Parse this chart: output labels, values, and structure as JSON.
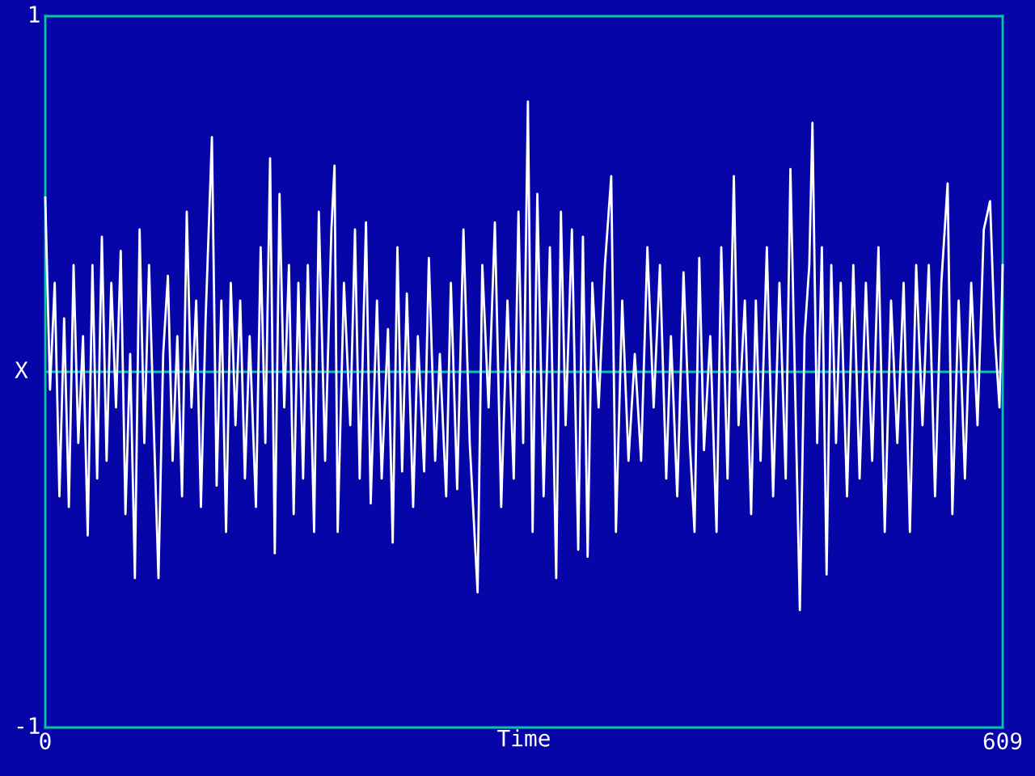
{
  "chart_data": {
    "type": "line",
    "xlabel": "Time",
    "ylabel": "X",
    "xlim": [
      0,
      609
    ],
    "xticks": [
      0,
      609
    ],
    "ylim": [
      -1,
      1
    ],
    "yticks": [
      1,
      {
        "value": -1,
        "label": "-1"
      }
    ],
    "grid": false,
    "marker": "none",
    "line_style": "solid",
    "ref_lines": [
      {
        "axis": "y",
        "value": 0,
        "label": null,
        "color": "#00c8a8",
        "line_style": "solid"
      }
    ],
    "series": [
      {
        "color": "#ffffff",
        "x": [
          0,
          3,
          6,
          9,
          12,
          15,
          18,
          21,
          24,
          27,
          30,
          33,
          36,
          39,
          42,
          45,
          48,
          51,
          54,
          57,
          60,
          63,
          66,
          69,
          72,
          75,
          78,
          81,
          84,
          87,
          90,
          93,
          96,
          99,
          102,
          106,
          109,
          112,
          115,
          118,
          121,
          124,
          127,
          130,
          134,
          137,
          140,
          143,
          146,
          149,
          152,
          155,
          158,
          161,
          164,
          167,
          171,
          174,
          178,
          182,
          184,
          186,
          190,
          194,
          197,
          200,
          204,
          207,
          211,
          214,
          218,
          221,
          224,
          227,
          230,
          234,
          237,
          241,
          244,
          248,
          251,
          255,
          258,
          262,
          266,
          270,
          275,
          278,
          282,
          286,
          290,
          294,
          298,
          301,
          304,
          307,
          310,
          313,
          317,
          321,
          325,
          328,
          331,
          335,
          339,
          342,
          345,
          348,
          352,
          356,
          360,
          363,
          367,
          371,
          375,
          379,
          383,
          387,
          391,
          395,
          398,
          402,
          406,
          410,
          413,
          416,
          419,
          423,
          427,
          430,
          434,
          438,
          441,
          445,
          449,
          452,
          455,
          459,
          463,
          467,
          471,
          474,
          477,
          480,
          483,
          486,
          488,
          491,
          494,
          497,
          500,
          503,
          506,
          510,
          514,
          518,
          522,
          526,
          530,
          534,
          538,
          542,
          546,
          550,
          554,
          558,
          562,
          566,
          570,
          574,
          577,
          581,
          585,
          589,
          593,
          597,
          601,
          604,
          607,
          609
        ],
        "values": [
          0.49,
          -0.05,
          0.25,
          -0.35,
          0.15,
          -0.38,
          0.3,
          -0.2,
          0.1,
          -0.46,
          0.3,
          -0.3,
          0.38,
          -0.25,
          0.25,
          -0.1,
          0.34,
          -0.4,
          0.05,
          -0.58,
          0.4,
          -0.2,
          0.3,
          -0.15,
          -0.58,
          0.05,
          0.27,
          -0.25,
          0.1,
          -0.35,
          0.45,
          -0.1,
          0.2,
          -0.38,
          0.15,
          0.66,
          -0.32,
          0.2,
          -0.45,
          0.25,
          -0.15,
          0.2,
          -0.3,
          0.1,
          -0.38,
          0.35,
          -0.2,
          0.6,
          -0.51,
          0.5,
          -0.1,
          0.3,
          -0.4,
          0.25,
          -0.3,
          0.3,
          -0.45,
          0.45,
          -0.25,
          0.4,
          0.58,
          -0.45,
          0.25,
          -0.15,
          0.4,
          -0.3,
          0.42,
          -0.37,
          0.2,
          -0.3,
          0.12,
          -0.48,
          0.35,
          -0.28,
          0.22,
          -0.38,
          0.1,
          -0.28,
          0.32,
          -0.25,
          0.05,
          -0.35,
          0.25,
          -0.33,
          0.4,
          -0.2,
          -0.62,
          0.3,
          -0.1,
          0.42,
          -0.38,
          0.2,
          -0.3,
          0.45,
          -0.2,
          0.76,
          -0.45,
          0.5,
          -0.35,
          0.35,
          -0.58,
          0.45,
          -0.15,
          0.4,
          -0.5,
          0.38,
          -0.52,
          0.25,
          -0.1,
          0.3,
          0.55,
          -0.45,
          0.2,
          -0.25,
          0.05,
          -0.25,
          0.35,
          -0.1,
          0.3,
          -0.3,
          0.1,
          -0.35,
          0.28,
          -0.2,
          -0.45,
          0.32,
          -0.22,
          0.1,
          -0.45,
          0.35,
          -0.3,
          0.55,
          -0.15,
          0.2,
          -0.4,
          0.2,
          -0.25,
          0.35,
          -0.35,
          0.25,
          -0.3,
          0.57,
          -0.05,
          -0.67,
          0.1,
          0.3,
          0.7,
          -0.2,
          0.35,
          -0.57,
          0.3,
          -0.2,
          0.25,
          -0.35,
          0.3,
          -0.3,
          0.25,
          -0.25,
          0.35,
          -0.45,
          0.2,
          -0.2,
          0.25,
          -0.45,
          0.3,
          -0.15,
          0.3,
          -0.35,
          0.25,
          0.53,
          -0.4,
          0.2,
          -0.3,
          0.25,
          -0.15,
          0.4,
          0.48,
          0.1,
          -0.1,
          0.3
        ]
      }
    ]
  }
}
